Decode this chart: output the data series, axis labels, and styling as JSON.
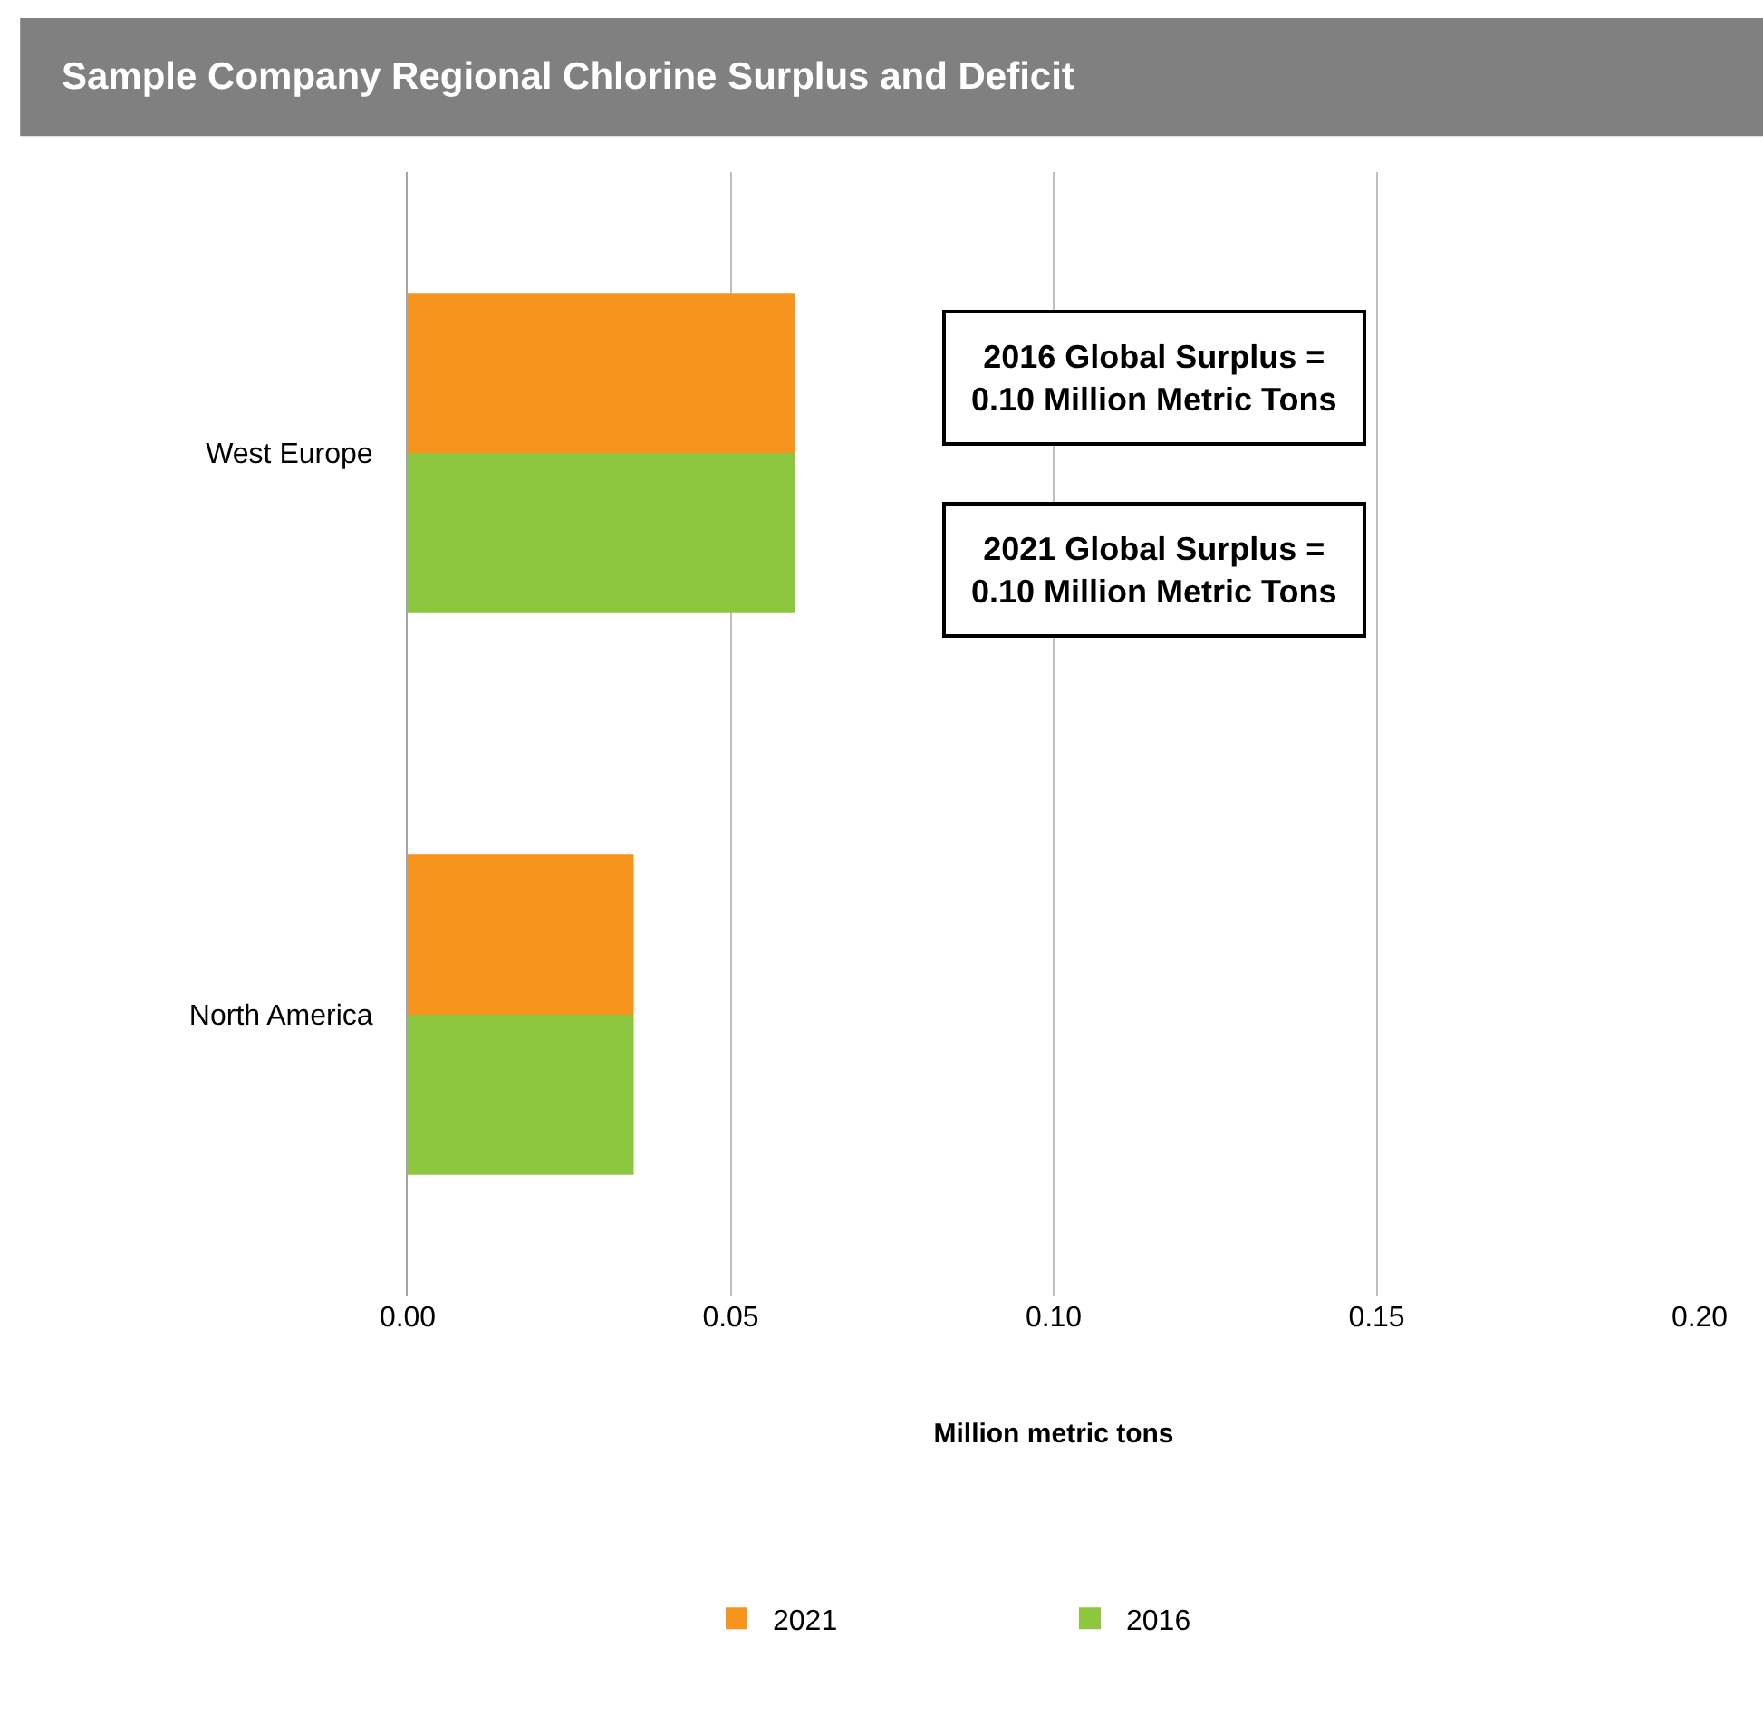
{
  "chart_data": {
    "type": "bar",
    "orientation": "horizontal",
    "title": "Sample Company Regional Chlorine Surplus and Deficit",
    "xlabel": "Million metric tons",
    "categories": [
      "West Europe",
      "North America"
    ],
    "series": [
      {
        "name": "2021",
        "color": "#f7941d",
        "values": [
          0.06,
          0.035
        ]
      },
      {
        "name": "2016",
        "color": "#8dc63f",
        "values": [
          0.06,
          0.035
        ]
      }
    ],
    "xlim": [
      0,
      0.2
    ],
    "xticks": [
      {
        "value": 0,
        "label": "0.00"
      },
      {
        "value": 0.05,
        "label": "0.05"
      },
      {
        "value": 0.1,
        "label": "0.10"
      },
      {
        "value": 0.15,
        "label": "0.15"
      },
      {
        "value": 0.2,
        "label": "0.20"
      }
    ],
    "grid": "x",
    "legend": "bottom",
    "annotations": [
      "2016 Global Surplus =\n0.10 Million Metric Tons",
      "2021 Global Surplus =\n0.10 Million Metric Tons"
    ]
  }
}
